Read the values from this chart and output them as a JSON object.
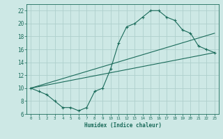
{
  "bg_color": "#cde8e5",
  "grid_color": "#afd0cc",
  "line_color": "#1a6b5a",
  "xlabel": "Humidex (Indice chaleur)",
  "xlim": [
    0,
    23
  ],
  "ylim": [
    6,
    23
  ],
  "yticks": [
    6,
    8,
    10,
    12,
    14,
    16,
    18,
    20,
    22
  ],
  "xticks": [
    0,
    1,
    2,
    3,
    4,
    5,
    6,
    7,
    8,
    9,
    10,
    11,
    12,
    13,
    14,
    15,
    16,
    17,
    18,
    19,
    20,
    21,
    22,
    23
  ],
  "curve_x": [
    0,
    1,
    2,
    3,
    4,
    5,
    6,
    7,
    8,
    9,
    10,
    11,
    12,
    13,
    14,
    15,
    16,
    17,
    18,
    19,
    20,
    21,
    22,
    23
  ],
  "curve_y": [
    10,
    9.5,
    9,
    8,
    7,
    7,
    6.5,
    7,
    9.5,
    10,
    13,
    17,
    19.5,
    20,
    21,
    22,
    22,
    21,
    20.5,
    19,
    18.5,
    16.5,
    16,
    15.5
  ],
  "line1_x": [
    0,
    23
  ],
  "line1_y": [
    10,
    15.5
  ],
  "line2_x": [
    0,
    23
  ],
  "line2_y": [
    10,
    18.5
  ],
  "marker": "+"
}
